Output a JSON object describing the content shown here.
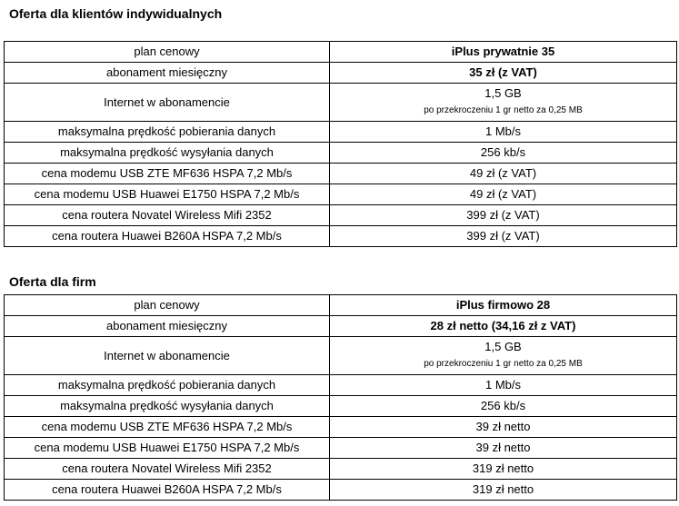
{
  "sections": [
    {
      "title": "Oferta dla klientów indywidualnych",
      "rows": [
        {
          "label": "plan cenowy",
          "value": "iPlus prywatnie 35",
          "bold": true
        },
        {
          "label": "abonament miesięczny",
          "value": "35 zł (z VAT)",
          "bold": true
        },
        {
          "label": "Internet w abonamencie",
          "value": "1,5 GB",
          "note": "po przekroczeniu 1 gr netto za 0,25 MB"
        },
        {
          "label": "maksymalna prędkość pobierania danych",
          "value": "1 Mb/s"
        },
        {
          "label": "maksymalna prędkość wysyłania danych",
          "value": "256 kb/s"
        },
        {
          "label": "cena modemu USB ZTE MF636 HSPA 7,2 Mb/s",
          "value": "49 zł (z VAT)"
        },
        {
          "label": "cena modemu USB Huawei E1750 HSPA 7,2 Mb/s",
          "value": "49 zł (z VAT)"
        },
        {
          "label": "cena routera Novatel Wireless Mifi 2352",
          "value": "399 zł (z VAT)"
        },
        {
          "label": "cena routera Huawei B260A HSPA 7,2 Mb/s",
          "value": "399 zł (z VAT)"
        }
      ]
    },
    {
      "title": "Oferta dla firm",
      "rows": [
        {
          "label": "plan cenowy",
          "value": "iPlus firmowo 28",
          "bold": true
        },
        {
          "label": "abonament miesięczny",
          "value": "28 zł netto (34,16 zł z VAT)",
          "bold": true
        },
        {
          "label": "Internet w abonamencie",
          "value": "1,5 GB",
          "note": "po przekroczeniu 1 gr netto za 0,25 MB"
        },
        {
          "label": "maksymalna prędkość pobierania danych",
          "value": "1 Mb/s"
        },
        {
          "label": "maksymalna prędkość wysyłania danych",
          "value": "256 kb/s"
        },
        {
          "label": "cena modemu USB ZTE MF636 HSPA 7,2 Mb/s",
          "value": "39 zł netto"
        },
        {
          "label": "cena modemu USB Huawei E1750 HSPA 7,2 Mb/s",
          "value": "39 zł netto"
        },
        {
          "label": "cena routera Novatel Wireless Mifi 2352",
          "value": "319 zł netto"
        },
        {
          "label": "cena routera Huawei B260A HSPA 7,2 Mb/s",
          "value": "319 zł netto"
        }
      ]
    }
  ]
}
